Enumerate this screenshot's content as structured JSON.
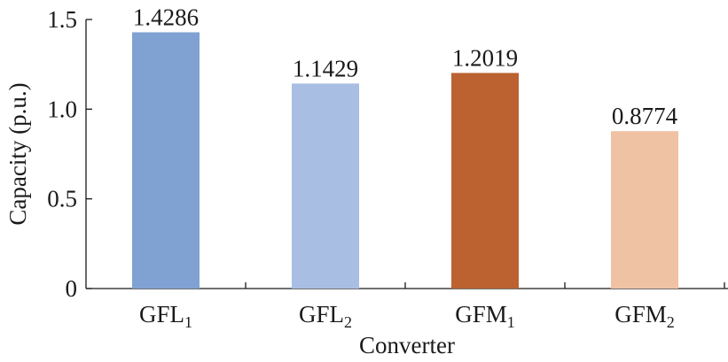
{
  "chart_data": {
    "type": "bar",
    "categories": [
      {
        "base": "GFL",
        "sub": "1"
      },
      {
        "base": "GFL",
        "sub": "2"
      },
      {
        "base": "GFM",
        "sub": "1"
      },
      {
        "base": "GFM",
        "sub": "2"
      }
    ],
    "values": [
      1.4286,
      1.1429,
      1.2019,
      0.8774
    ],
    "data_labels": [
      "1.4286",
      "1.1429",
      "1.2019",
      "0.8774"
    ],
    "colors": [
      "#7fa2d3",
      "#a8bee3",
      "#bb6230",
      "#f0c2a4"
    ],
    "xlabel": "Converter",
    "ylabel": "Capacity (p.u.)",
    "ylim": [
      0,
      1.5
    ],
    "yticks": [
      0,
      0.5,
      1.0,
      1.5
    ],
    "ytick_labels": [
      "0",
      "0.5",
      "1.0",
      "1.5"
    ],
    "grid": false,
    "legend": "none"
  }
}
